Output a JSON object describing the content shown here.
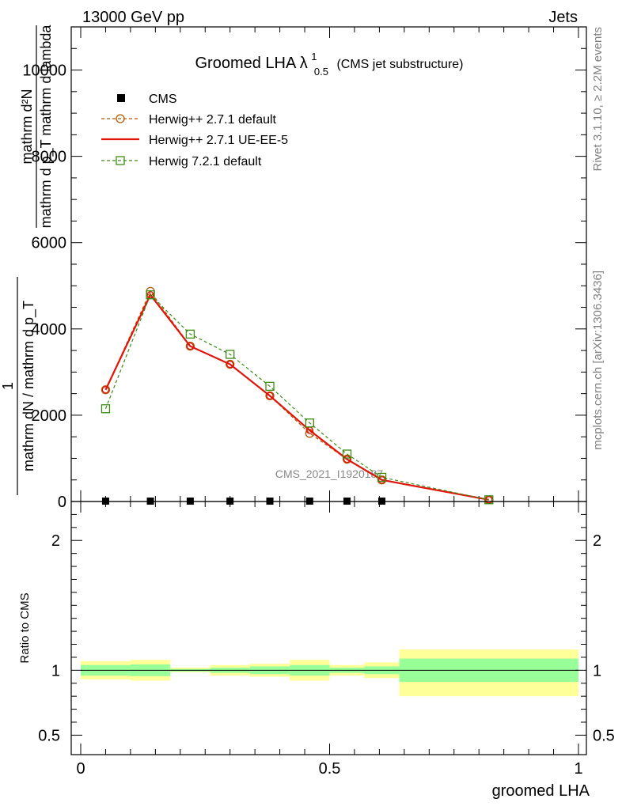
{
  "header": {
    "left": "13000 GeV pp",
    "right": "Jets"
  },
  "side_labels": {
    "rivet": "Rivet 3.1.10, ≥ 2.2M events",
    "mcplots": "mcplots.cern.ch [arXiv:1306.3436]"
  },
  "watermark": "CMS_2021_I1920187",
  "chart_data": [
    {
      "type": "line",
      "title_main": "Groomed LHA",
      "title_lambda": "λ",
      "title_sup": "1",
      "title_sub": "0.5",
      "title_note": "(CMS jet substructure)",
      "ylabel_numerator": "mathrm d²N",
      "ylabel_denominator": "mathrm d p_T mathrm d lambda",
      "ylabel_prefix_num": "1",
      "ylabel_prefix_den": "mathrm dN / mathrm d p_T",
      "ylabel_den_sub": "T",
      "ylim": [
        0,
        11000
      ],
      "yticks": [
        {
          "value": 0,
          "label": "0"
        },
        {
          "value": 2000,
          "label": "2000"
        },
        {
          "value": 4000,
          "label": "4000"
        },
        {
          "value": 6000,
          "label": "6000"
        },
        {
          "value": 8000,
          "label": "8000"
        },
        {
          "value": 10000,
          "label": "10000"
        }
      ],
      "xlim": [
        0,
        1
      ],
      "legend_position": "top-left",
      "series": [
        {
          "name": "CMS",
          "color": "#000000",
          "marker": "filled-square",
          "line": "none",
          "x": [
            0.05,
            0.14,
            0.22,
            0.3,
            0.38,
            0.46,
            0.535,
            0.605
          ],
          "y": [
            0,
            0,
            0,
            0,
            0,
            0,
            0,
            0
          ]
        },
        {
          "name": "Herwig++ 2.7.1 default",
          "color": "#b35900",
          "marker": "open-circle",
          "line": "dashed",
          "x": [
            0.05,
            0.14,
            0.22,
            0.3,
            0.38,
            0.46,
            0.535,
            0.605,
            0.82
          ],
          "y": [
            2590,
            4870,
            3600,
            3180,
            2450,
            1580,
            980,
            500,
            40
          ]
        },
        {
          "name": "Herwig++ 2.7.1 UE-EE-5",
          "color": "#e0140a",
          "marker": "none",
          "line": "solid",
          "x": [
            0.05,
            0.14,
            0.22,
            0.3,
            0.38,
            0.46,
            0.535,
            0.605,
            0.82
          ],
          "y": [
            2590,
            4790,
            3600,
            3180,
            2450,
            1650,
            980,
            500,
            40
          ]
        },
        {
          "name": "Herwig 7.2.1 default",
          "color": "#3c8c14",
          "marker": "open-square",
          "line": "dashed",
          "x": [
            0.05,
            0.14,
            0.22,
            0.3,
            0.38,
            0.46,
            0.535,
            0.605,
            0.82
          ],
          "y": [
            2150,
            4790,
            3880,
            3410,
            2670,
            1820,
            1100,
            560,
            40
          ]
        }
      ]
    },
    {
      "type": "area",
      "ylabel": "Ratio to CMS",
      "xlabel": "groomed LHA",
      "xlim": [
        0,
        1
      ],
      "ylim": [
        0.35,
        2.3
      ],
      "yticks": [
        {
          "value": 0.5,
          "label": "0.5"
        },
        {
          "value": 1,
          "label": "1"
        },
        {
          "value": 2,
          "label": "2"
        }
      ],
      "xticks": [
        {
          "value": 0,
          "label": "0"
        },
        {
          "value": 0.5,
          "label": "0.5"
        },
        {
          "value": 1,
          "label": "1"
        }
      ],
      "reference_line": 1,
      "bands": [
        {
          "x0": 0.0,
          "x1": 0.1,
          "yellow": [
            0.93,
            1.07
          ],
          "green": [
            0.96,
            1.04
          ]
        },
        {
          "x0": 0.1,
          "x1": 0.18,
          "yellow": [
            0.92,
            1.08
          ],
          "green": [
            0.955,
            1.045
          ]
        },
        {
          "x0": 0.18,
          "x1": 0.26,
          "yellow": [
            0.985,
            1.02
          ],
          "green": [
            0.99,
            1.01
          ]
        },
        {
          "x0": 0.26,
          "x1": 0.34,
          "yellow": [
            0.96,
            1.04
          ],
          "green": [
            0.98,
            1.02
          ]
        },
        {
          "x0": 0.34,
          "x1": 0.42,
          "yellow": [
            0.95,
            1.05
          ],
          "green": [
            0.97,
            1.03
          ]
        },
        {
          "x0": 0.42,
          "x1": 0.5,
          "yellow": [
            0.92,
            1.08
          ],
          "green": [
            0.96,
            1.04
          ]
        },
        {
          "x0": 0.5,
          "x1": 0.57,
          "yellow": [
            0.96,
            1.04
          ],
          "green": [
            0.98,
            1.02
          ]
        },
        {
          "x0": 0.57,
          "x1": 0.64,
          "yellow": [
            0.94,
            1.06
          ],
          "green": [
            0.97,
            1.03
          ]
        },
        {
          "x0": 0.64,
          "x1": 1.0,
          "yellow": [
            0.8,
            1.16
          ],
          "green": [
            0.91,
            1.09
          ]
        }
      ]
    }
  ],
  "colors": {
    "band_yellow": "#ffff99",
    "band_green": "#99ff99",
    "watermark": "#888888",
    "side_text": "#808080"
  }
}
